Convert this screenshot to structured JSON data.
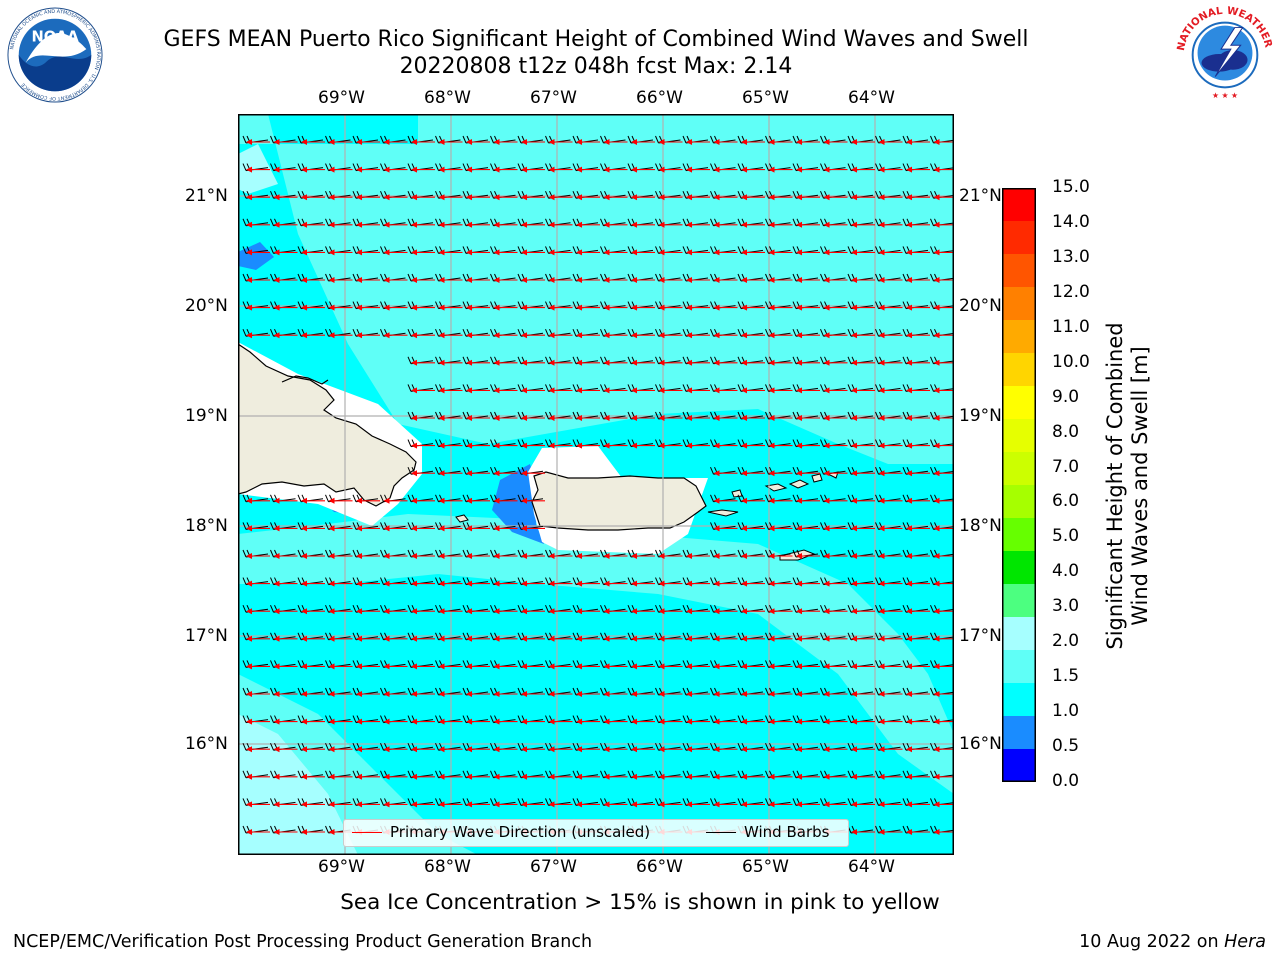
{
  "title": {
    "line1": "GEFS MEAN Puerto Rico Significant Height of Combined Wind Waves and Swell",
    "line2": "20220808 t12z 048h fcst   Max: 2.14"
  },
  "logos": {
    "left": "NOAA",
    "left_ring_text": "NATIONAL OCEANIC AND ATMOSPHERIC ADMINISTRATION · U.S. DEPARTMENT OF COMMERCE",
    "right_ring_text": "NATIONAL WEATHER SERVICE"
  },
  "map": {
    "lon_labels": [
      "69°W",
      "68°W",
      "67°W",
      "66°W",
      "65°W",
      "64°W"
    ],
    "lat_labels": [
      "21°N",
      "20°N",
      "19°N",
      "18°N",
      "17°N",
      "16°N"
    ],
    "ocean_color": "#00ffff",
    "light_color": "#5ffff7",
    "land_color": "#efedde",
    "barb_color": "#000000",
    "wave_dir_color": "#ff0000"
  },
  "legend": {
    "wave_direction": "Primary Wave Direction (unscaled)",
    "wind_barbs": "Wind Barbs"
  },
  "colorbar": {
    "label_line1": "Significant Height of Combined",
    "label_line2": "Wind Waves and Swell [m]",
    "ticks": [
      "15.0",
      "14.0",
      "13.0",
      "12.0",
      "11.0",
      "10.0",
      "9.0",
      "8.0",
      "7.0",
      "6.0",
      "5.0",
      "4.0",
      "3.0",
      "2.0",
      "1.5",
      "1.0",
      "0.5",
      "0.0"
    ],
    "colors": [
      "#ff0000",
      "#ff2a00",
      "#ff5500",
      "#ff8000",
      "#ffaa00",
      "#ffd500",
      "#ffff00",
      "#e6ff00",
      "#ccff00",
      "#a6ff00",
      "#66ff00",
      "#00e600",
      "#4cff80",
      "#a6ffff",
      "#5ffff7",
      "#00ffff",
      "#1a8cff",
      "#0000ff"
    ]
  },
  "note": "Sea Ice Concentration > 15% is shown in pink to yellow",
  "footer": {
    "left": "NCEP/EMC/Verification Post Processing Product Generation Branch",
    "right_date": "10 Aug 2022 on ",
    "right_host": "Hera"
  }
}
